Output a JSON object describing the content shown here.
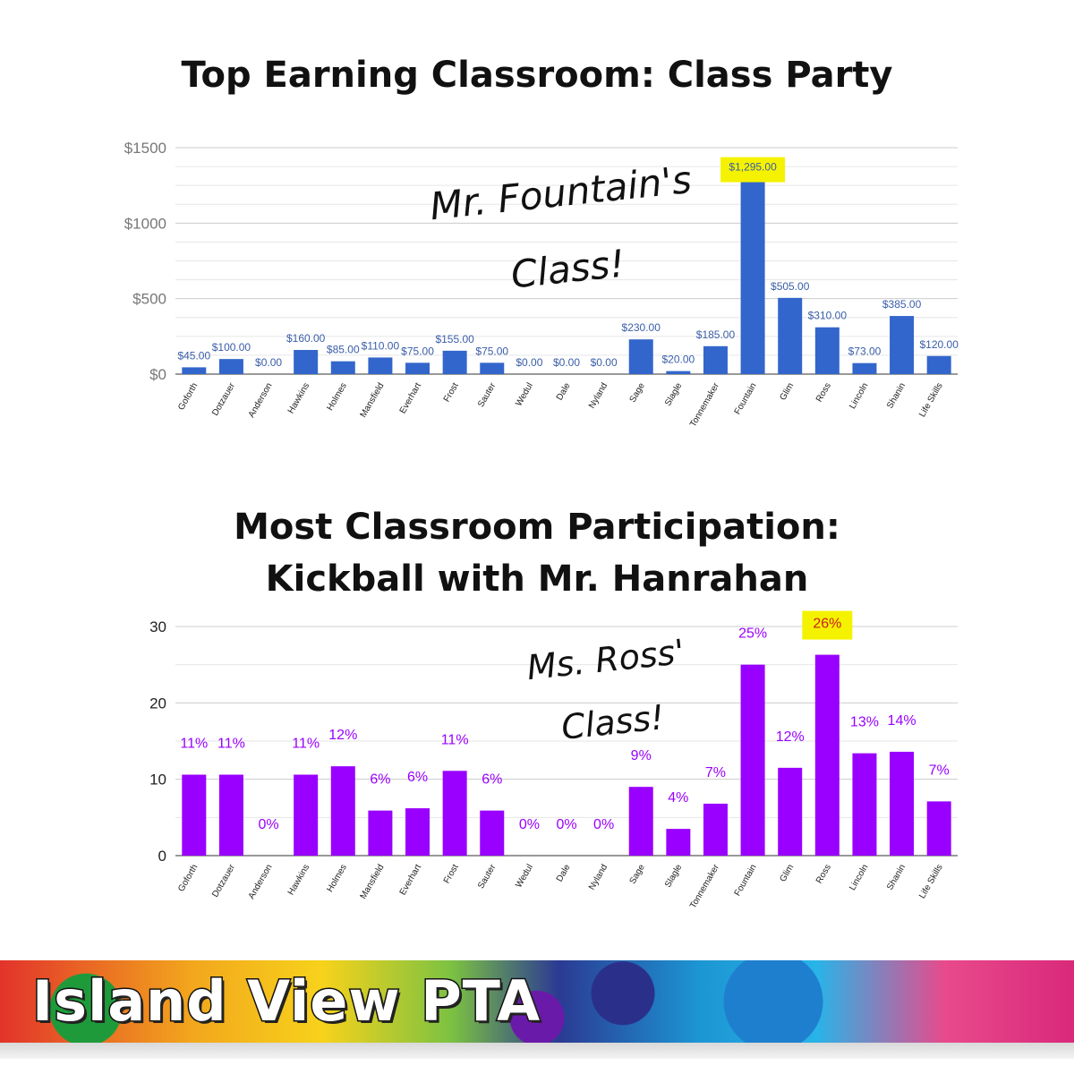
{
  "chart_data": [
    {
      "type": "bar",
      "title": "Top Earning Classroom: Class Party",
      "categories": [
        "Goforth",
        "Dotzauer",
        "Anderson",
        "Hawkins",
        "Holmes",
        "Mansfield",
        "Everhart",
        "Frost",
        "Sauter",
        "Wedul",
        "Dale",
        "Nyland",
        "Sage",
        "Slagle",
        "Tonnemaker",
        "Fountain",
        "Glim",
        "Ross",
        "Lincoln",
        "Shanin",
        "Life Skills"
      ],
      "values": [
        45,
        100,
        0,
        160,
        85,
        110,
        75,
        155,
        75,
        0,
        0,
        0,
        230,
        20,
        185,
        1295,
        505,
        310,
        73,
        385,
        120
      ],
      "data_labels": [
        "$45.00",
        "$100.00",
        "$0.00",
        "$160.00",
        "$85.00",
        "$110.00",
        "$75.00",
        "$155.00",
        "$75.00",
        "$0.00",
        "$0.00",
        "$0.00",
        "$230.00",
        "$20.00",
        "$185.00",
        "$1,295.00",
        "$505.00",
        "$310.00",
        "$73.00",
        "$385.00",
        "$120.00"
      ],
      "ylim": [
        0,
        1500
      ],
      "yticks": [
        0,
        500,
        1000,
        1500
      ],
      "ytick_labels": [
        "$0",
        "$500",
        "$1000",
        "$1500"
      ],
      "grid": true,
      "highlight_index": 15,
      "annotation": [
        "Mr. Fountain's",
        "Class!"
      ],
      "bar_color": "#3366cc",
      "label_color": "#3a5ea8",
      "highlight_color": "#f5f200"
    },
    {
      "type": "bar",
      "title": [
        "Most Classroom Participation:",
        "Kickball with Mr. Hanrahan"
      ],
      "categories": [
        "Goforth",
        "Dotzauer",
        "Anderson",
        "Hawkins",
        "Holmes",
        "Mansfield",
        "Everhart",
        "Frost",
        "Sauter",
        "Wedul",
        "Dale",
        "Nyland",
        "Sage",
        "Slagle",
        "Tonnemaker",
        "Fountain",
        "Glim",
        "Ross",
        "Lincoln",
        "Shanin",
        "Life Skills"
      ],
      "values": [
        10.6,
        10.6,
        0,
        10.6,
        11.7,
        5.9,
        6.2,
        11.1,
        5.9,
        0,
        0,
        0,
        9,
        3.5,
        6.8,
        25,
        11.5,
        26.3,
        13.4,
        13.6,
        7.1
      ],
      "data_labels": [
        "11%",
        "11%",
        "0%",
        "11%",
        "12%",
        "6%",
        "6%",
        "11%",
        "6%",
        "0%",
        "0%",
        "0%",
        "9%",
        "4%",
        "7%",
        "25%",
        "12%",
        "26%",
        "13%",
        "14%",
        "7%"
      ],
      "ylim": [
        0,
        30
      ],
      "yticks": [
        0,
        10,
        20,
        30
      ],
      "ytick_labels": [
        "0",
        "10",
        "20",
        "30"
      ],
      "grid": true,
      "highlight_index": 17,
      "annotation": [
        "Ms. Ross'",
        "Class!"
      ],
      "bar_color": "#9900ff",
      "label_color": "#9900ff",
      "highlight_color": "#f5f200"
    }
  ],
  "banner": {
    "title": "Island View PTA"
  }
}
